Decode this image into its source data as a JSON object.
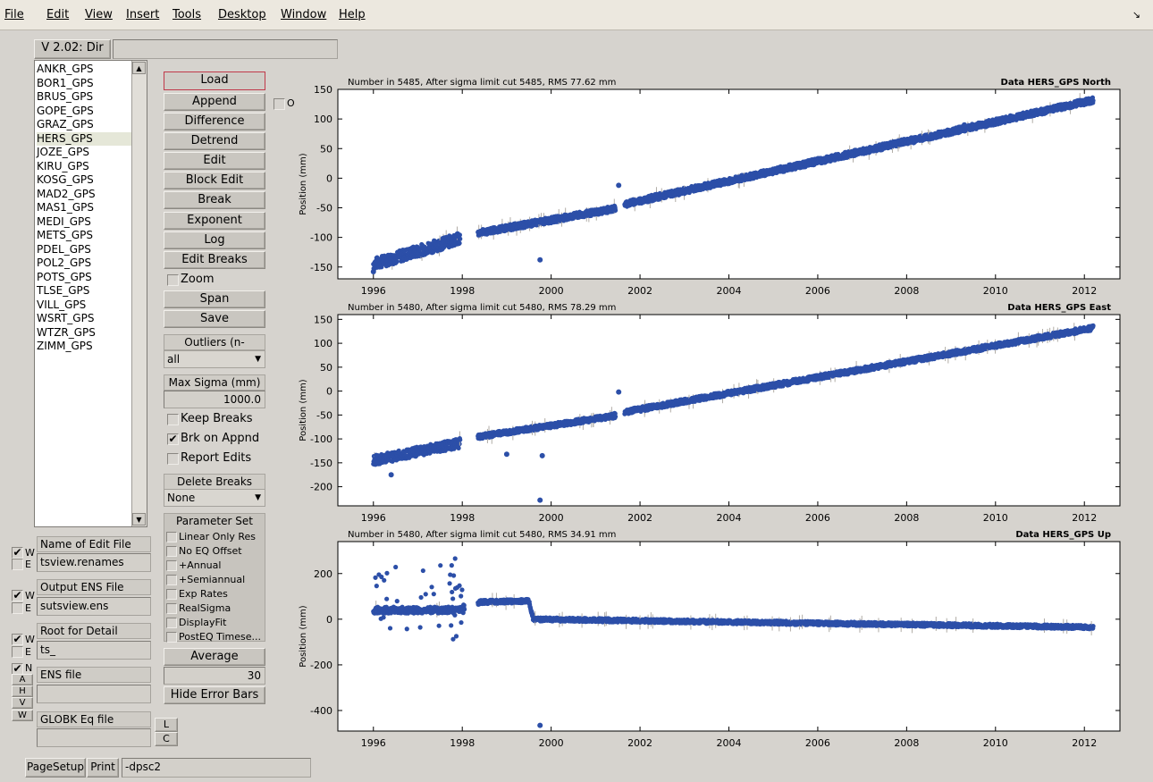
{
  "menubar": {
    "items": [
      "File",
      "Edit",
      "View",
      "Insert",
      "Tools",
      "Desktop",
      "Window",
      "Help"
    ],
    "corner_glyph": "↘"
  },
  "version_label": "V 2.02: Dir",
  "dir_field": "",
  "sites": [
    "ANKR_GPS",
    "BOR1_GPS",
    "BRUS_GPS",
    "GOPE_GPS",
    "GRAZ_GPS",
    "HERS_GPS",
    "JOZE_GPS",
    "KIRU_GPS",
    "KOSG_GPS",
    "MAD2_GPS",
    "MAS1_GPS",
    "MEDI_GPS",
    "METS_GPS",
    "PDEL_GPS",
    "POL2_GPS",
    "POTS_GPS",
    "TLSE_GPS",
    "VILL_GPS",
    "WSRT_GPS",
    "WTZR_GPS",
    "ZIMM_GPS"
  ],
  "selected_site": "HERS_GPS",
  "buttons": {
    "load": "Load",
    "append": "Append",
    "difference": "Difference",
    "detrend": "Detrend",
    "edit": "Edit",
    "block_edit": "Block Edit",
    "break": "Break",
    "exponent": "Exponent",
    "log": "Log",
    "edit_breaks": "Edit Breaks",
    "span": "Span",
    "save": "Save",
    "average": "Average",
    "hide_error_bars": "Hide Error Bars",
    "page_setup": "PageSetup",
    "print": "Print",
    "l": "L",
    "c": "C"
  },
  "append_option": "O",
  "zoom_label": "Zoom",
  "outliers": {
    "label": "Outliers (n-sigma)",
    "value": "all"
  },
  "max_sigma": {
    "label": "Max Sigma (mm)",
    "value": "1000.0"
  },
  "checks": {
    "keep_breaks": {
      "label": "Keep Breaks",
      "checked": false
    },
    "brk_on_appnd": {
      "label": "Brk on Appnd",
      "checked": true
    },
    "report_edits": {
      "label": "Report Edits",
      "checked": false
    }
  },
  "delete_breaks": {
    "label": "Delete Breaks",
    "value": "None"
  },
  "parameter_set": {
    "label": "Parameter Set",
    "items": [
      "Linear Only Res",
      "No EQ Offset",
      "+Annual",
      "+Semiannual",
      "Exp Rates",
      "RealSigma",
      "DisplayFit",
      "PostEQ Timese..."
    ]
  },
  "average_value": "30",
  "edit_file": {
    "w": "W",
    "e": "E",
    "label": "Name of Edit File",
    "value": "tsview.renames"
  },
  "output_ens": {
    "w": "W",
    "e": "E",
    "label": "Output ENS File",
    "value": "sutsview.ens"
  },
  "root_detail": {
    "w": "W",
    "e": "E",
    "label": "Root for Detail",
    "value": "ts_"
  },
  "ens_file": {
    "n": "N",
    "a": "A",
    "h": "H",
    "v": "V",
    "label": "ENS file",
    "value": ""
  },
  "globk": {
    "w": "W",
    "label": "GLOBK Eq file",
    "value": ""
  },
  "print_option": "-dpsc2",
  "colors": {
    "points": "#2c4fa8",
    "errorbar": "#b0aca6",
    "plot_bg": "#ffffff"
  },
  "chart_data": [
    {
      "type": "scatter",
      "title": "Data HERS_GPS North",
      "header": "Number in  5485, After sigma limit cut  5485, RMS  77.62 mm",
      "ylabel": "Position (mm)",
      "xlim": [
        1995.2,
        2012.8
      ],
      "ylim": [
        -170,
        150
      ],
      "yticks": [
        -150,
        -100,
        -50,
        0,
        50,
        100,
        150
      ],
      "xticks": [
        1996,
        1998,
        2000,
        2002,
        2004,
        2006,
        2008,
        2010,
        2012
      ],
      "trend": [
        [
          1996,
          -145
        ],
        [
          1997.9,
          -103
        ],
        [
          1998.4,
          -92
        ],
        [
          2001.4,
          -52
        ],
        [
          2001.7,
          -43
        ],
        [
          2012.2,
          132
        ]
      ],
      "gaps": [
        [
          1997.95,
          1998.35
        ],
        [
          2001.45,
          2001.65
        ]
      ],
      "outliers": [
        [
          1999.75,
          -138
        ],
        [
          2001.52,
          -12
        ],
        [
          1996.0,
          -158
        ],
        [
          2009.3,
          90
        ]
      ]
    },
    {
      "type": "scatter",
      "title": "Data HERS_GPS East",
      "header": "Number in  5480, After sigma limit cut  5480, RMS  78.29 mm",
      "ylabel": "Position (mm)",
      "xlim": [
        1995.2,
        2012.8
      ],
      "ylim": [
        -240,
        160
      ],
      "yticks": [
        -200,
        -150,
        -100,
        -50,
        0,
        50,
        100,
        150
      ],
      "xticks": [
        1996,
        1998,
        2000,
        2002,
        2004,
        2006,
        2008,
        2010,
        2012
      ],
      "trend": [
        [
          1996,
          -145
        ],
        [
          1997.9,
          -110
        ],
        [
          1998.4,
          -95
        ],
        [
          2001.4,
          -52
        ],
        [
          2001.7,
          -43
        ],
        [
          2012.2,
          132
        ]
      ],
      "gaps": [
        [
          1997.95,
          1998.35
        ],
        [
          2001.45,
          2001.65
        ]
      ],
      "outliers": [
        [
          1999.75,
          -228
        ],
        [
          1999.0,
          -132
        ],
        [
          1999.8,
          -135
        ],
        [
          2001.52,
          -2
        ],
        [
          1996.4,
          -175
        ]
      ]
    },
    {
      "type": "scatter",
      "title": "Data HERS_GPS Up",
      "header": "Number in  5480, After sigma limit cut  5480, RMS  34.91 mm",
      "ylabel": "Position (mm)",
      "xlim": [
        1995.2,
        2012.8
      ],
      "ylim": [
        -490,
        340
      ],
      "yticks": [
        -400,
        -200,
        0,
        200
      ],
      "xticks": [
        1996,
        1998,
        2000,
        2002,
        2004,
        2006,
        2008,
        2010,
        2012
      ],
      "trend": [
        [
          1996,
          40
        ],
        [
          1997.9,
          40
        ],
        [
          1998.4,
          75
        ],
        [
          1999.5,
          80
        ],
        [
          1999.6,
          0
        ],
        [
          2012.2,
          -35
        ]
      ],
      "gaps": [
        [
          1998.05,
          1998.35
        ]
      ],
      "outliers": [
        [
          1999.75,
          -465
        ]
      ]
    }
  ]
}
